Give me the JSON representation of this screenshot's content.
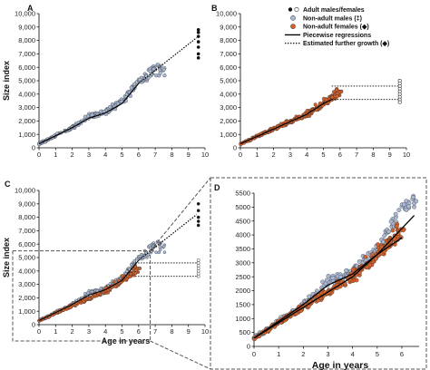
{
  "legend": [
    {
      "label": "Adult males/females",
      "kind": "adult"
    },
    {
      "label": "Non-adult males (‡)",
      "kind": "nonadult-male"
    },
    {
      "label": "Non-adult females (◆)",
      "kind": "nonadult-female"
    },
    {
      "label": "Piecewise regressions",
      "kind": "solid"
    },
    {
      "label": "Estimated further growth (◆)",
      "kind": "dotted"
    }
  ],
  "colors": {
    "male": "#a9b8d4",
    "female": "#d4602a",
    "adult": "#111111",
    "line": "#000000",
    "zoom_box": "#555555"
  },
  "chart_data": [
    {
      "panel": "A",
      "type": "scatter",
      "title": "",
      "ylabel": "Size index",
      "xlabel": "",
      "xlim": [
        0,
        10
      ],
      "ylim": [
        0,
        10000
      ],
      "xticks": [
        "0",
        "1",
        "2",
        "3",
        "4",
        "5",
        "6",
        "7",
        "8",
        "9",
        "10"
      ],
      "yticks": [
        "0",
        "1,000",
        "2,000",
        "3,000",
        "4,000",
        "5,000",
        "6,000",
        "7,000",
        "8,000",
        "9,000",
        "10,000"
      ],
      "series": [
        "male"
      ],
      "adult_points": {
        "x": 9.6,
        "y": [
          8800,
          8600,
          8300,
          7900,
          7500,
          7000,
          6700
        ]
      },
      "regression": [
        [
          0,
          300
        ],
        [
          1,
          900
        ],
        [
          2,
          1500
        ],
        [
          3,
          2200
        ],
        [
          4,
          2600
        ],
        [
          5,
          3300
        ],
        [
          6,
          4800
        ],
        [
          9.5,
          8200
        ]
      ]
    },
    {
      "panel": "B",
      "type": "scatter",
      "title": "",
      "ylabel": "",
      "xlabel": "",
      "xlim": [
        0,
        10
      ],
      "ylim": [
        0,
        10000
      ],
      "xticks": [
        "0",
        "1",
        "2",
        "3",
        "4",
        "5",
        "6",
        "7",
        "8",
        "9",
        "10"
      ],
      "yticks": [
        "0",
        "1,000",
        "2,000",
        "3,000",
        "4,000",
        "5,000",
        "6,000",
        "7,000",
        "8,000",
        "9,000",
        "10,000"
      ],
      "series": [
        "female"
      ],
      "adult_points": {
        "x": 9.6,
        "y": [
          5000,
          4800,
          4600,
          4400,
          4200,
          4000,
          3800,
          3600,
          3400
        ]
      },
      "regression": [
        [
          0,
          300
        ],
        [
          1,
          850
        ],
        [
          2,
          1400
        ],
        [
          3,
          1950
        ],
        [
          4,
          2500
        ],
        [
          5,
          3300
        ],
        [
          5.5,
          3600
        ]
      ],
      "plateaus": [
        4600,
        3600
      ]
    },
    {
      "panel": "C",
      "type": "scatter",
      "title": "",
      "ylabel": "Size index",
      "xlabel": "Age in years",
      "xlim": [
        0,
        10
      ],
      "ylim": [
        0,
        10000
      ],
      "xticks": [
        "0",
        "1",
        "2",
        "3",
        "4",
        "5",
        "6",
        "7",
        "8",
        "9",
        "10"
      ],
      "yticks": [
        "0",
        "1,000",
        "2,000",
        "3,000",
        "4,000",
        "5,000",
        "6,000",
        "7,000",
        "8,000",
        "9,000",
        "10,000"
      ],
      "series": [
        "male",
        "female"
      ],
      "adult_points": {
        "x": 9.6,
        "y": [
          9000,
          8500,
          8000,
          7700,
          7400,
          4800,
          4600,
          4400,
          4200,
          4000,
          3800,
          3600
        ]
      },
      "regression": [
        [
          0,
          300
        ],
        [
          1,
          900
        ],
        [
          2,
          1500
        ],
        [
          3,
          2200
        ],
        [
          4,
          2600
        ],
        [
          5,
          3300
        ],
        [
          6,
          4800
        ],
        [
          9.5,
          8200
        ]
      ],
      "plateaus": [
        4600,
        3600
      ]
    },
    {
      "panel": "D",
      "type": "scatter",
      "title": "",
      "ylabel": "",
      "xlabel": "Age in years",
      "xlim": [
        0,
        6.7
      ],
      "ylim": [
        0,
        5500
      ],
      "xticks": [
        "0",
        "1",
        "2",
        "3",
        "4",
        "5",
        "6"
      ],
      "yticks": [
        "0",
        "500",
        "1000",
        "1500",
        "2000",
        "2500",
        "3000",
        "3500",
        "4000",
        "4500",
        "5000",
        "5500"
      ],
      "series": [
        "male",
        "female"
      ],
      "regression_male": [
        [
          0,
          300
        ],
        [
          1,
          900
        ],
        [
          2,
          1500
        ],
        [
          3,
          2200
        ],
        [
          4,
          2600
        ],
        [
          5,
          3300
        ],
        [
          6.5,
          4700
        ]
      ],
      "regression_female": [
        [
          0,
          300
        ],
        [
          1,
          850
        ],
        [
          2,
          1400
        ],
        [
          3,
          1950
        ],
        [
          4,
          2500
        ],
        [
          5,
          3300
        ],
        [
          6,
          3900
        ]
      ]
    }
  ]
}
